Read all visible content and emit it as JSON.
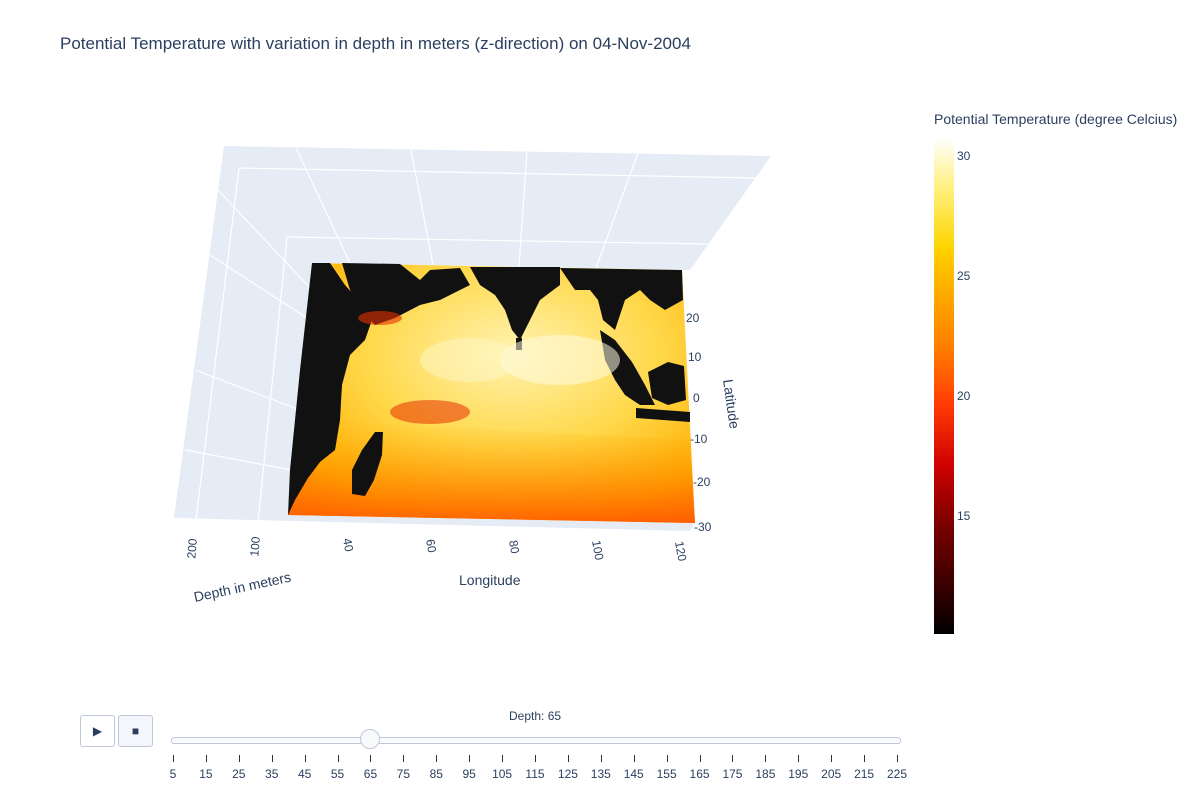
{
  "title": "Potential Temperature with variation in depth in meters (z-direction) on 04-Nov-2004",
  "colorbar": {
    "title": "Potential Temperature (degree Celcius)",
    "ticks": [
      "30",
      "25",
      "20",
      "15"
    ]
  },
  "scene": {
    "xaxis_title": "Longitude",
    "xticks": [
      "40",
      "60",
      "80",
      "100",
      "120"
    ],
    "yaxis_title": "Latitude",
    "yticks": [
      "20",
      "10",
      "0",
      "-10",
      "-20",
      "-30"
    ],
    "zaxis_title": "Depth in meters",
    "zticks": [
      "200",
      "100"
    ]
  },
  "controls": {
    "play_label": "▶",
    "stop_label": "■"
  },
  "slider": {
    "current_label": "Depth: 65",
    "current_value": 65,
    "steps": [
      "5",
      "15",
      "25",
      "35",
      "45",
      "55",
      "65",
      "75",
      "85",
      "95",
      "105",
      "115",
      "125",
      "135",
      "145",
      "155",
      "165",
      "175",
      "185",
      "195",
      "205",
      "215",
      "225"
    ]
  },
  "chart_data": {
    "type": "heatmap",
    "title": "Potential Temperature with variation in depth in meters (z-direction) on 04-Nov-2004",
    "xlabel": "Longitude",
    "ylabel": "Latitude",
    "zlabel": "Depth in meters",
    "colorbar_title": "Potential Temperature (degree Celcius)",
    "color_range": [
      10,
      31
    ],
    "x_ticks": [
      40,
      60,
      80,
      100,
      120
    ],
    "y_ticks": [
      20,
      10,
      0,
      -10,
      -20,
      -30
    ],
    "z_ticks": [
      200,
      100
    ],
    "frame_depth": 65,
    "colorscale": [
      "#000000",
      "#ff0000",
      "#ffd000",
      "#ffffff"
    ]
  }
}
